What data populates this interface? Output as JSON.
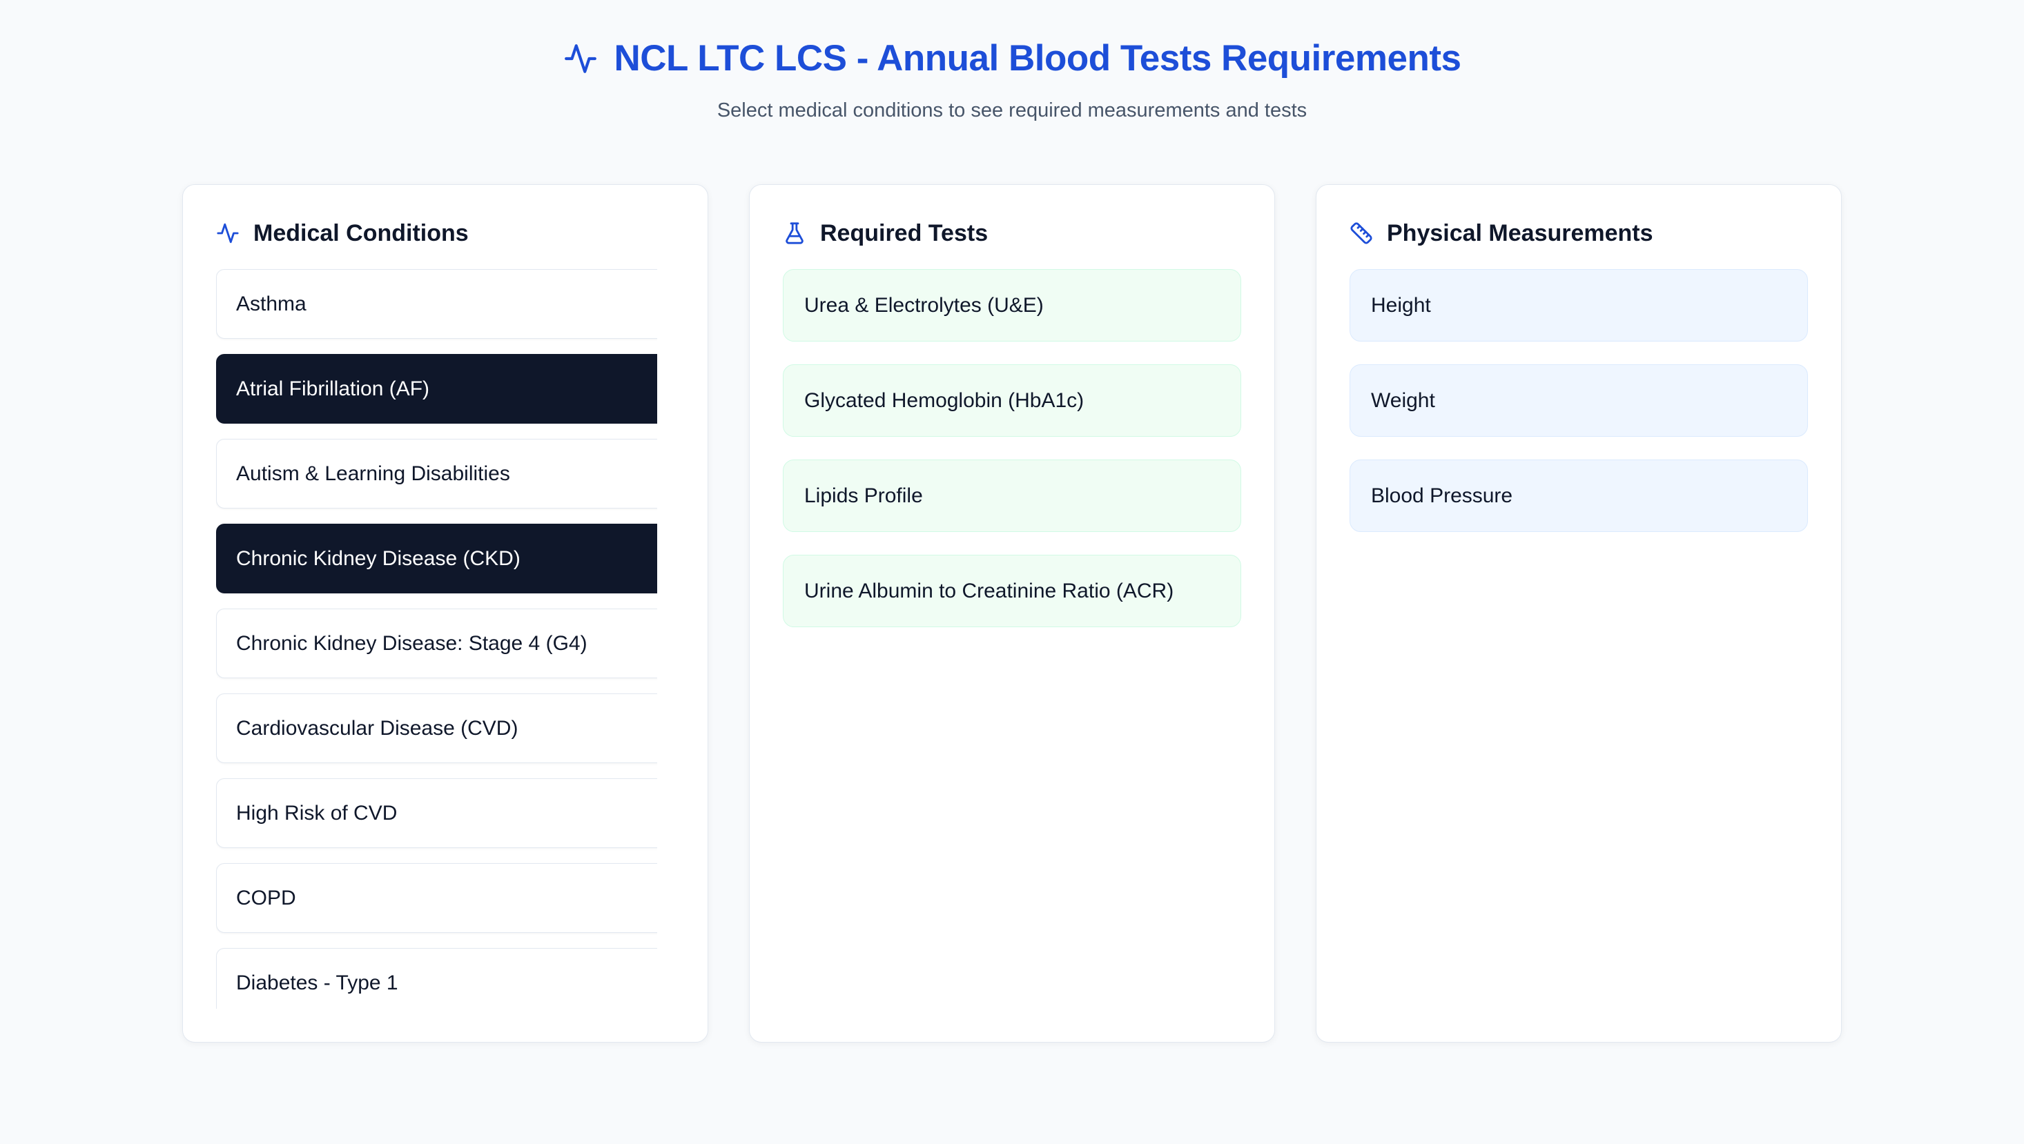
{
  "header": {
    "title": "NCL LTC LCS - Annual Blood Tests Requirements",
    "subtitle": "Select medical conditions to see required measurements and tests",
    "icon": "activity-icon"
  },
  "panels": {
    "conditions": {
      "title": "Medical Conditions",
      "icon": "activity-icon",
      "items": [
        {
          "label": "Asthma",
          "selected": false
        },
        {
          "label": "Atrial Fibrillation (AF)",
          "selected": true
        },
        {
          "label": "Autism & Learning Disabilities",
          "selected": false
        },
        {
          "label": "Chronic Kidney Disease (CKD)",
          "selected": true
        },
        {
          "label": "Chronic Kidney Disease: Stage 4 (G4)",
          "selected": false
        },
        {
          "label": "Cardiovascular Disease (CVD)",
          "selected": false
        },
        {
          "label": "High Risk of CVD",
          "selected": false
        },
        {
          "label": "COPD",
          "selected": false
        },
        {
          "label": "Diabetes - Type 1",
          "selected": false
        }
      ]
    },
    "tests": {
      "title": "Required Tests",
      "icon": "flask-icon",
      "items": [
        "Urea & Electrolytes (U&E)",
        "Glycated Hemoglobin (HbA1c)",
        "Lipids Profile",
        "Urine Albumin to Creatinine Ratio (ACR)"
      ]
    },
    "measurements": {
      "title": "Physical Measurements",
      "icon": "ruler-icon",
      "items": [
        "Height",
        "Weight",
        "Blood Pressure"
      ]
    }
  },
  "colors": {
    "accent": "#1d4ed8",
    "page_bg": "#f8fafc",
    "card_border": "#e2e8f0",
    "heading_text": "#0f172a",
    "subtitle_text": "#475569",
    "selected_item_bg": "#0f172a",
    "selected_item_text": "#ffffff",
    "test_item_bg": "#f0fdf4",
    "test_item_border": "#d1fae5",
    "measurement_item_bg": "#eff6ff",
    "measurement_item_border": "#dbeafe"
  }
}
